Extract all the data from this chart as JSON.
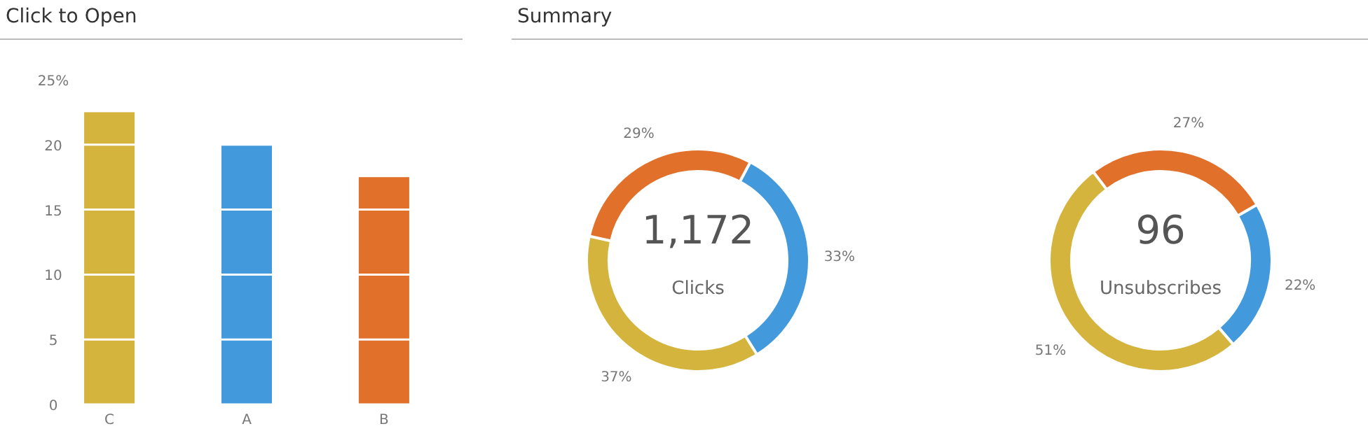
{
  "chart_data": [
    {
      "type": "bar",
      "title": "Click to Open",
      "categories": [
        "C",
        "A",
        "B"
      ],
      "values": [
        22.5,
        20,
        17.5
      ],
      "colors": [
        "#d4b43c",
        "#4299dc",
        "#e0702a"
      ],
      "ylim": [
        0,
        25
      ],
      "yticks": [
        0,
        5,
        10,
        15,
        20,
        {
          "value": 25,
          "label": "25%"
        }
      ],
      "grid": "y"
    },
    {
      "type": "donut",
      "title": "Summary",
      "categories": [
        null,
        null,
        null
      ],
      "values": [
        33,
        37,
        29
      ],
      "colors": [
        "#4299dc",
        "#d4b43c",
        "#e0702a"
      ],
      "value_labels": [
        "33%",
        "37%",
        "29%"
      ],
      "annotations": [
        "1,172",
        "Clicks"
      ]
    },
    {
      "type": "donut",
      "categories": [
        null,
        null,
        null
      ],
      "values": [
        22,
        51,
        27
      ],
      "colors": [
        "#4299dc",
        "#d4b43c",
        "#e0702a"
      ],
      "value_labels": [
        "22%",
        "51%",
        "27%"
      ],
      "annotations": [
        "96",
        "Unsubscribes"
      ]
    }
  ]
}
